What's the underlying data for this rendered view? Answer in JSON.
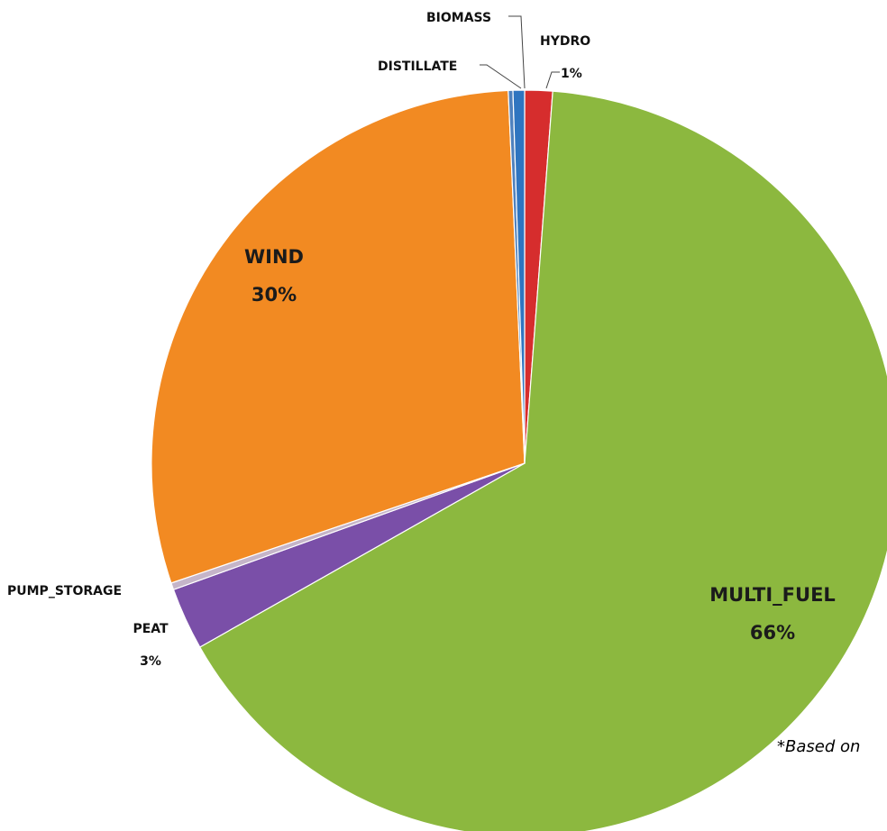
{
  "chart_data": {
    "type": "pie",
    "slices": [
      {
        "name": "HYDRO",
        "value": 1.2,
        "pct_label": "1%",
        "color": "#d62d2d"
      },
      {
        "name": "MULTI_FUEL",
        "value": 65.6,
        "pct_label": "66%",
        "color": "#8cb83f"
      },
      {
        "name": "PEAT",
        "value": 2.7,
        "pct_label": "3%",
        "color": "#7a4fa8"
      },
      {
        "name": "PUMP_STORAGE",
        "value": 0.3,
        "pct_label": "",
        "color": "#c5b5c9"
      },
      {
        "name": "WIND",
        "value": 29.5,
        "pct_label": "30%",
        "color": "#f28a22"
      },
      {
        "name": "DISTILLATE",
        "value": 0.2,
        "pct_label": "",
        "color": "#4f81bd"
      },
      {
        "name": "BIOMASS",
        "value": 0.5,
        "pct_label": "",
        "color": "#2f75c0"
      }
    ],
    "footnote": "*Based on"
  }
}
